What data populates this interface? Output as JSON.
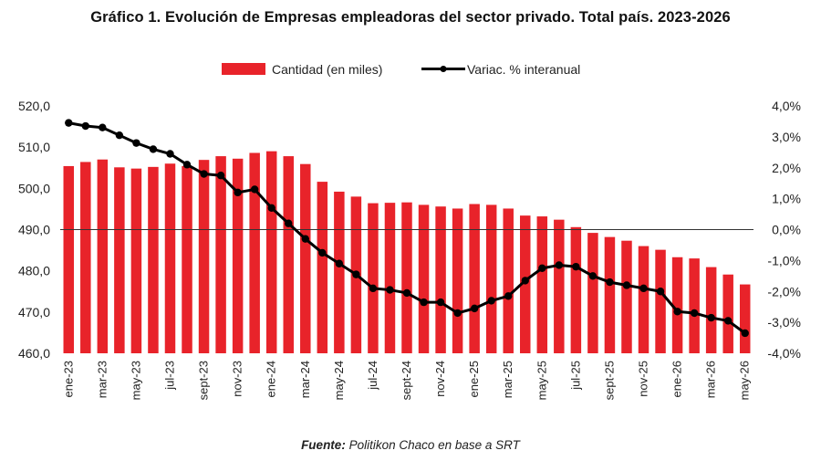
{
  "chart_data": {
    "type": "bar+line",
    "title": "Gráfico 1. Evolución de Empresas empleadoras del sector privado. Total país. 2023-2026",
    "source_label": "Fuente:",
    "source_text": " Politikon Chaco en base a SRT",
    "legend": [
      "Cantidad (en miles)",
      "Variac. % interanual"
    ],
    "bar_color": "#e8232a",
    "line_color": "#000000",
    "y_left": {
      "lim": [
        460,
        520
      ],
      "ticks": [
        "460,0",
        "470,0",
        "480,0",
        "490,0",
        "500,0",
        "510,0",
        "520,0"
      ]
    },
    "y_right": {
      "lim": [
        -4,
        4
      ],
      "ticks": [
        "-4,0%",
        "-3,0%",
        "-2,0%",
        "-1,0%",
        "0,0%",
        "1,0%",
        "2,0%",
        "3,0%",
        "4,0%"
      ]
    },
    "x_tick_labels": [
      "ene-23",
      "mar-23",
      "may-23",
      "jul-23",
      "sept-23",
      "nov-23",
      "ene-24",
      "mar-24",
      "may-24",
      "jul-24",
      "sept-24",
      "nov-24",
      "ene-25",
      "mar-25",
      "may-25",
      "jul-25",
      "sept-25",
      "nov-25",
      "ene-26",
      "mar-26",
      "may-26"
    ],
    "categories": [
      "ene-23",
      "feb-23",
      "mar-23",
      "abr-23",
      "may-23",
      "jun-23",
      "jul-23",
      "ago-23",
      "sept-23",
      "oct-23",
      "nov-23",
      "dic-23",
      "ene-24",
      "feb-24",
      "mar-24",
      "abr-24",
      "may-24",
      "jun-24",
      "jul-24",
      "ago-24",
      "sept-24",
      "oct-24",
      "nov-24",
      "dic-24",
      "ene-25",
      "feb-25",
      "mar-25",
      "abr-25",
      "may-25",
      "jun-25",
      "jul-25",
      "ago-25",
      "sept-25",
      "oct-25",
      "nov-25",
      "dic-25",
      "ene-26",
      "feb-26",
      "mar-26",
      "abr-26",
      "may-26"
    ],
    "series": [
      {
        "name": "Cantidad (en miles)",
        "axis": "left",
        "type": "bar",
        "values": [
          505.4,
          506.4,
          507.0,
          505.1,
          504.8,
          505.2,
          506.0,
          505.4,
          506.9,
          507.8,
          507.2,
          508.6,
          509.0,
          507.8,
          505.9,
          501.6,
          499.2,
          498.0,
          496.4,
          496.5,
          496.6,
          496.0,
          495.6,
          495.1,
          496.2,
          496.0,
          495.1,
          493.4,
          493.2,
          492.4,
          490.6,
          489.2,
          488.2,
          487.3,
          486.0,
          485.1,
          483.3,
          483.0,
          480.9,
          479.1,
          476.7
        ]
      },
      {
        "name": "Variac. % interanual",
        "axis": "right",
        "type": "line",
        "values": [
          3.45,
          3.35,
          3.3,
          3.05,
          2.8,
          2.6,
          2.45,
          2.1,
          1.8,
          1.75,
          1.2,
          1.3,
          0.7,
          0.2,
          -0.3,
          -0.75,
          -1.1,
          -1.45,
          -1.9,
          -1.95,
          -2.05,
          -2.35,
          -2.35,
          -2.7,
          -2.55,
          -2.3,
          -2.15,
          -1.65,
          -1.25,
          -1.15,
          -1.2,
          -1.5,
          -1.7,
          -1.8,
          -1.9,
          -2.0,
          -2.65,
          -2.7,
          -2.85,
          -2.95,
          -3.35
        ]
      }
    ]
  }
}
